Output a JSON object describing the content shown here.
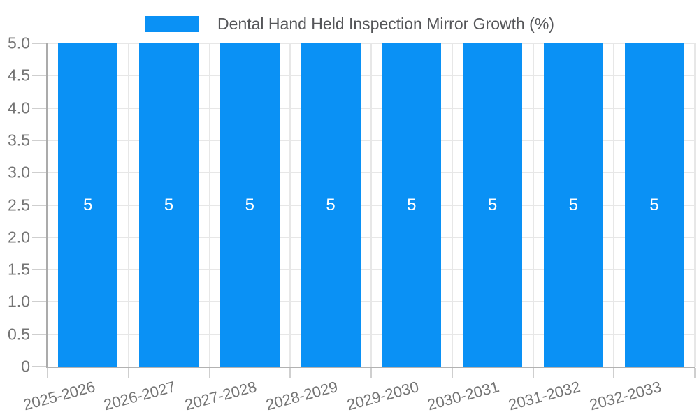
{
  "legend": {
    "label": "Dental Hand Held Inspection Mirror Growth (%)",
    "swatch_color": "#0a91f5"
  },
  "colors": {
    "bar": "#0a91f5",
    "bar_value_text": "#ffffff",
    "gridline": "#e7e7e7",
    "axis_line": "#b0b0b0",
    "tick": "#cfcfcf",
    "axis_label_text": "#747474",
    "legend_text": "#555659"
  },
  "chart_data": {
    "type": "bar",
    "title": "Dental Hand Held Inspection Mirror Growth (%)",
    "legend_position": "top",
    "grid": true,
    "categories": [
      "2025-2026",
      "2026-2027",
      "2027-2028",
      "2028-2029",
      "2029-2030",
      "2030-2031",
      "2031-2032",
      "2032-2033"
    ],
    "series": [
      {
        "name": "Dental Hand Held Inspection Mirror Growth (%)",
        "values": [
          5,
          5,
          5,
          5,
          5,
          5,
          5,
          5
        ]
      }
    ],
    "bar_value_labels": [
      "5",
      "5",
      "5",
      "5",
      "5",
      "5",
      "5",
      "5"
    ],
    "xlabel": "",
    "ylabel": "",
    "ylim": [
      0,
      5
    ],
    "yticks": [
      {
        "label": "5.0",
        "value": 5.0
      },
      {
        "label": "4.5",
        "value": 4.5
      },
      {
        "label": "4.0",
        "value": 4.0
      },
      {
        "label": "3.5",
        "value": 3.5
      },
      {
        "label": "3.0",
        "value": 3.0
      },
      {
        "label": "2.5",
        "value": 2.5
      },
      {
        "label": "2.0",
        "value": 2.0
      },
      {
        "label": "1.5",
        "value": 1.5
      },
      {
        "label": "1.0",
        "value": 1.0
      },
      {
        "label": "0.5",
        "value": 0.5
      },
      {
        "label": "0",
        "value": 0
      }
    ]
  }
}
